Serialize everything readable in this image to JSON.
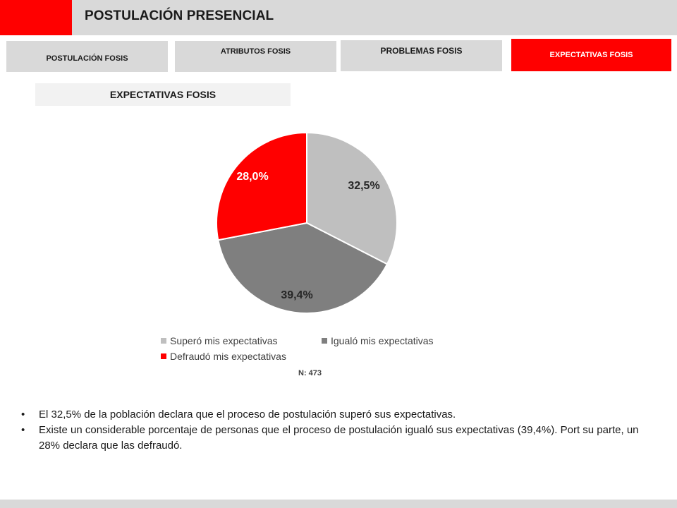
{
  "header": {
    "title": "POSTULACIÓN PRESENCIAL"
  },
  "tabs": [
    {
      "label": "POSTULACIÓN FOSIS",
      "active": false
    },
    {
      "label": "ATRIBUTOS FOSIS",
      "active": false
    },
    {
      "label": "PROBLEMAS FOSIS",
      "active": false
    },
    {
      "label": "EXPECTATIVAS FOSIS",
      "active": true
    }
  ],
  "section": {
    "title": "EXPECTATIVAS FOSIS"
  },
  "chart_data": {
    "type": "pie",
    "title": "",
    "slices": [
      {
        "label": "Superó mis expectativas",
        "value": 32.5,
        "display": "32,5%",
        "color": "#bfbfbf",
        "label_color": "#262626"
      },
      {
        "label": "Igualó mis expectativas",
        "value": 39.4,
        "display": "39,4%",
        "color": "#7f7f7f",
        "label_color": "#262626"
      },
      {
        "label": "Defraudó mis expectativas",
        "value": 28.0,
        "display": "28,0%",
        "color": "#ff0000",
        "label_color": "#ffffff"
      }
    ],
    "legend_position": "bottom"
  },
  "sample": {
    "text": "N: 473"
  },
  "bullets": [
    "El 32,5% de la población declara que el proceso de postulación superó sus expectativas.",
    "Existe un considerable porcentaje de personas que el proceso de postulación igualó sus expectativas (39,4%). Port su parte, un 28% declara que las defraudó."
  ],
  "bullet_symbol": "•",
  "colors": {
    "accent": "#ff0000",
    "bar_gray": "#d9d9d9"
  }
}
